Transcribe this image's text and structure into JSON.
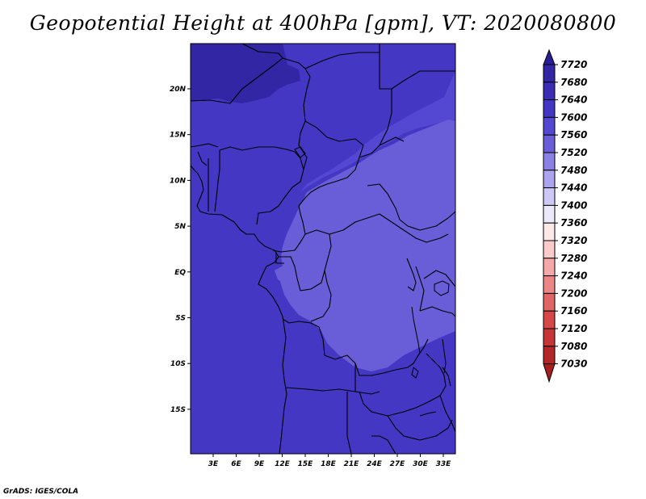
{
  "title": "Geopotential Height at 400hPa [gpm], VT: 2020080800",
  "footer": "GrADS: IGES/COLA",
  "map": {
    "lon_range": [
      0,
      35
    ],
    "lat_range": [
      -20,
      25
    ],
    "x_tick_labels": [
      "3E",
      "6E",
      "9E",
      "12E",
      "15E",
      "18E",
      "21E",
      "24E",
      "27E",
      "30E",
      "33E"
    ],
    "y_tick_labels": [
      "20N",
      "15N",
      "10N",
      "5N",
      "EQ",
      "5S",
      "10S",
      "15S"
    ],
    "fill_colors": {
      "7680": "#3226a4",
      "7640": "#4337c3",
      "7600": "#5448d2",
      "7560": "#6a5ed8"
    }
  },
  "colorbar": {
    "levels": [
      "7720",
      "7680",
      "7640",
      "7600",
      "7560",
      "7520",
      "7480",
      "7440",
      "7400",
      "7360",
      "7320",
      "7280",
      "7240",
      "7200",
      "7160",
      "7120",
      "7080",
      "7030"
    ],
    "colors": [
      "#2a1e96",
      "#3226a4",
      "#3b2eb4",
      "#4337c3",
      "#5448d2",
      "#6a5ed8",
      "#8b80e4",
      "#aca4ee",
      "#cdc8f6",
      "#eceaf9",
      "#fde8e8",
      "#fbcaca",
      "#f5a8a8",
      "#ec8686",
      "#e06666",
      "#d64848",
      "#c73636",
      "#b32727",
      "#a81e1e"
    ]
  }
}
